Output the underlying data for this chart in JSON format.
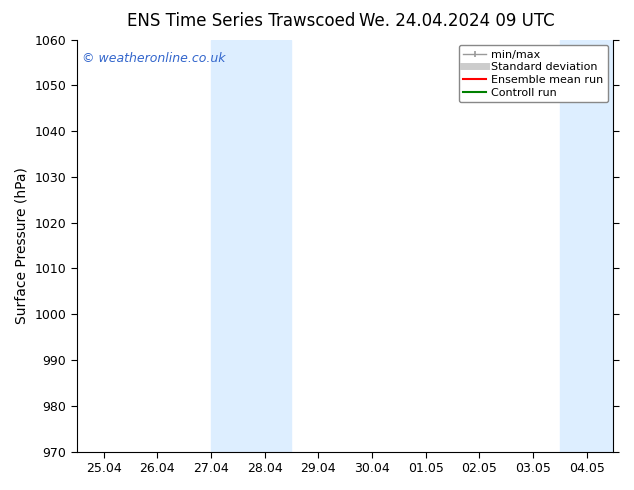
{
  "title_left": "ENS Time Series Trawscoed",
  "title_right": "We. 24.04.2024 09 UTC",
  "ylabel": "Surface Pressure (hPa)",
  "ylim": [
    970,
    1060
  ],
  "yticks": [
    970,
    980,
    990,
    1000,
    1010,
    1020,
    1030,
    1040,
    1050,
    1060
  ],
  "x_labels": [
    "25.04",
    "26.04",
    "27.04",
    "28.04",
    "29.04",
    "30.04",
    "01.05",
    "02.05",
    "03.05",
    "04.05"
  ],
  "x_values": [
    0,
    1,
    2,
    3,
    4,
    5,
    6,
    7,
    8,
    9
  ],
  "x_min": -0.5,
  "x_max": 9.5,
  "shaded_bands": [
    {
      "x_start": 2.0,
      "x_end": 3.5,
      "color": "#ddeeff"
    },
    {
      "x_start": 8.5,
      "x_end": 9.5,
      "color": "#ddeeff"
    }
  ],
  "watermark": "© weatheronline.co.uk",
  "watermark_color": "#3366cc",
  "background_color": "#ffffff",
  "legend_items": [
    {
      "label": "min/max",
      "color": "#999999",
      "lw": 1.0,
      "style": "solid",
      "marker": "|"
    },
    {
      "label": "Standard deviation",
      "color": "#cccccc",
      "lw": 5,
      "style": "solid",
      "marker": ""
    },
    {
      "label": "Ensemble mean run",
      "color": "#ff0000",
      "lw": 1.5,
      "style": "solid",
      "marker": ""
    },
    {
      "label": "Controll run",
      "color": "#008000",
      "lw": 1.5,
      "style": "solid",
      "marker": ""
    }
  ],
  "title_fontsize": 12,
  "axis_label_fontsize": 10,
  "tick_fontsize": 9,
  "legend_fontsize": 8,
  "watermark_fontsize": 9
}
